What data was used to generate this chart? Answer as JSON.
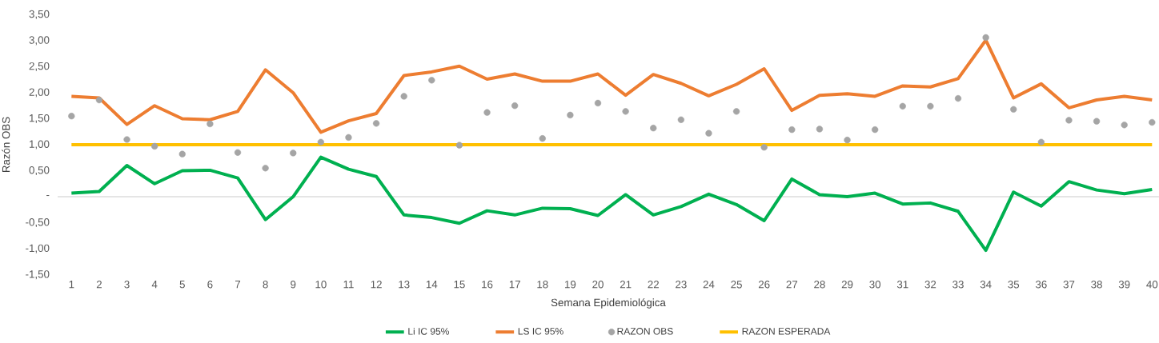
{
  "chart_data": {
    "type": "line",
    "xlabel": "Semana Epidemiológica",
    "ylabel": "Razón OBS",
    "categories": [
      "1",
      "2",
      "3",
      "4",
      "5",
      "6",
      "7",
      "8",
      "9",
      "10",
      "11",
      "12",
      "13",
      "14",
      "15",
      "16",
      "17",
      "18",
      "19",
      "20",
      "21",
      "22",
      "23",
      "24",
      "25",
      "26",
      "27",
      "28",
      "29",
      "30",
      "31",
      "32",
      "33",
      "34",
      "35",
      "36",
      "37",
      "38",
      "39",
      "40"
    ],
    "ylim": [
      -1.5,
      3.5
    ],
    "yticks": [
      {
        "value": -1.5,
        "label": "-1,50"
      },
      {
        "value": -1.0,
        "label": "-1,00"
      },
      {
        "value": -0.5,
        "label": "-0,50"
      },
      {
        "value": 0,
        "label": "-"
      },
      {
        "value": 0.5,
        "label": "0,50"
      },
      {
        "value": 1.0,
        "label": "1,00"
      },
      {
        "value": 1.5,
        "label": "1,50"
      },
      {
        "value": 2.0,
        "label": "2,00"
      },
      {
        "value": 2.5,
        "label": "2,50"
      },
      {
        "value": 3.0,
        "label": "3,00"
      },
      {
        "value": 3.5,
        "label": "3,50"
      }
    ],
    "legend": "bottom",
    "series": [
      {
        "name": "Li IC 95%",
        "color": "#00b050",
        "values": [
          0.07,
          0.1,
          0.6,
          0.25,
          0.5,
          0.51,
          0.36,
          -0.44,
          0.0,
          0.76,
          0.53,
          0.39,
          -0.35,
          -0.4,
          -0.51,
          -0.27,
          -0.35,
          -0.22,
          -0.23,
          -0.36,
          0.04,
          -0.35,
          -0.19,
          0.05,
          -0.15,
          -0.46,
          0.34,
          0.04,
          0.0,
          0.07,
          -0.14,
          -0.12,
          -0.28,
          -1.03,
          0.09,
          -0.18,
          0.29,
          0.13,
          0.06,
          0.14
        ]
      },
      {
        "name": "LS IC 95%",
        "color": "#ed7d31",
        "values": [
          1.93,
          1.9,
          1.39,
          1.75,
          1.5,
          1.48,
          1.64,
          2.44,
          2.0,
          1.24,
          1.46,
          1.6,
          2.33,
          2.4,
          2.51,
          2.26,
          2.36,
          2.22,
          2.22,
          2.36,
          1.95,
          2.35,
          2.18,
          1.94,
          2.16,
          2.46,
          1.66,
          1.95,
          1.98,
          1.93,
          2.13,
          2.11,
          2.27,
          3.01,
          1.9,
          2.17,
          1.71,
          1.86,
          1.93,
          1.86
        ]
      },
      {
        "name": "RAZON OBS",
        "color": "#a5a5a5",
        "type": "scatter",
        "values": [
          1.55,
          1.86,
          1.1,
          0.97,
          0.82,
          1.4,
          0.85,
          0.55,
          0.84,
          1.05,
          1.14,
          1.41,
          1.93,
          2.24,
          0.99,
          1.62,
          1.75,
          1.12,
          1.57,
          1.8,
          1.64,
          1.32,
          1.48,
          1.22,
          1.64,
          0.95,
          1.29,
          1.3,
          1.09,
          1.29,
          1.74,
          1.74,
          1.89,
          3.06,
          1.68,
          1.05,
          1.47,
          1.45,
          1.38,
          1.43
        ]
      },
      {
        "name": "RAZON ESPERADA",
        "color": "#ffc000",
        "values": [
          1.0,
          1.0,
          1.0,
          1.0,
          1.0,
          1.0,
          1.0,
          1.0,
          1.0,
          1.0,
          1.0,
          1.0,
          1.0,
          1.0,
          1.0,
          1.0,
          1.0,
          1.0,
          1.0,
          1.0,
          1.0,
          1.0,
          1.0,
          1.0,
          1.0,
          1.0,
          1.0,
          1.0,
          1.0,
          1.0,
          1.0,
          1.0,
          1.0,
          1.0,
          1.0,
          1.0,
          1.0,
          1.0,
          1.0,
          1.0
        ]
      }
    ]
  }
}
